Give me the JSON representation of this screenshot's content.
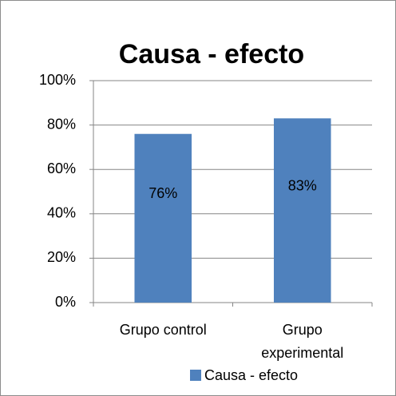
{
  "chart_data": {
    "type": "bar",
    "title": "Causa - efecto",
    "categories": [
      "Grupo control",
      "Grupo experimental"
    ],
    "series": [
      {
        "name": "Causa - efecto",
        "color": "#4f81bd",
        "values": [
          76,
          83
        ],
        "value_labels": [
          "76%",
          "83%"
        ]
      }
    ],
    "ylim": [
      0,
      100
    ],
    "yticks": [
      {
        "value": 0,
        "label": "0%"
      },
      {
        "value": 20,
        "label": "20%"
      },
      {
        "value": 40,
        "label": "40%"
      },
      {
        "value": 60,
        "label": "60%"
      },
      {
        "value": 80,
        "label": "80%"
      },
      {
        "value": 100,
        "label": "100%"
      }
    ],
    "grid": true,
    "legend": "bottom"
  }
}
